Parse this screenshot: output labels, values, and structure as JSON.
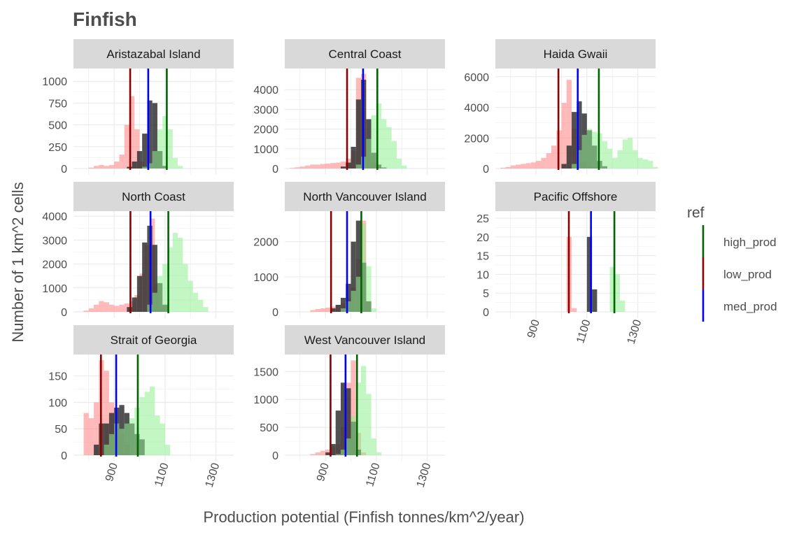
{
  "chart_data": {
    "type": "histogram",
    "title": "Finfish",
    "xlabel": "Production potential (Finfish tonnes/km^2/year)",
    "ylabel": "Number of 1 km^2 cells",
    "xlim": [
      740,
      1370
    ],
    "x_ticks": [
      "900",
      "1100",
      "1300"
    ],
    "x_tick_values": [
      900,
      1100,
      1300
    ],
    "bin_width": 20,
    "legend": {
      "title": "ref",
      "items": [
        {
          "label": "high_prod",
          "color": "#006400"
        },
        {
          "label": "low_prod",
          "color": "#8B0000"
        },
        {
          "label": "med_prod",
          "color": "#0000FF"
        }
      ]
    },
    "series_fill": {
      "low_prod": "#ff7f7f",
      "med_prod": "#333333",
      "high_prod": "#90ee90"
    },
    "facets": [
      {
        "name": "Aristazabal Island",
        "ylim": [
          0,
          1130
        ],
        "y_ticks": [
          0,
          250,
          500,
          750,
          1000
        ],
        "reference_lines": {
          "low_prod": 963,
          "med_prod": 1034,
          "high_prod": 1107
        },
        "bins": {
          "low_prod": {
            "start": 800,
            "values": [
              10,
              30,
              40,
              30,
              40,
              80,
              160,
              500,
              830,
              450,
              80,
              10
            ]
          },
          "med_prod": {
            "start": 950,
            "values": [
              20,
              80,
              200,
              400,
              780,
              750,
              200,
              30
            ]
          },
          "high_prod": {
            "start": 1010,
            "values": [
              20,
              60,
              200,
              450,
              600,
              450,
              120,
              30
            ]
          }
        }
      },
      {
        "name": "Central Coast",
        "ylim": [
          0,
          5000
        ],
        "y_ticks": [
          0,
          1000,
          2000,
          3000,
          4000
        ],
        "reference_lines": {
          "low_prod": 985,
          "med_prod": 1048,
          "high_prod": 1104
        },
        "bins": {
          "low_prod": {
            "start": 760,
            "values": [
              30,
              60,
              100,
              150,
              200,
              200,
              230,
              250,
              280,
              300,
              350,
              500,
              900,
              4600,
              4800,
              1500,
              300,
              60
            ]
          },
          "med_prod": {
            "start": 960,
            "values": [
              100,
              300,
              1100,
              3500,
              4500,
              2500,
              800,
              200,
              50
            ]
          },
          "high_prod": {
            "start": 1020,
            "values": [
              200,
              600,
              1500,
              2700,
              3300,
              2500,
              2100,
              1400,
              500,
              150
            ]
          }
        }
      },
      {
        "name": "Haida Gwaii",
        "ylim": [
          0,
          6450
        ],
        "y_ticks": [
          0,
          2000,
          4000,
          6000
        ],
        "reference_lines": {
          "low_prod": 988,
          "med_prod": 1064,
          "high_prod": 1147
        },
        "bins": {
          "low_prod": {
            "start": 760,
            "values": [
              50,
              100,
              200,
              250,
              300,
              350,
              400,
              500,
              700,
              1000,
              1500,
              2500,
              4300,
              5800,
              2600,
              1100,
              500,
              200,
              80
            ]
          },
          "med_prod": {
            "start": 1000,
            "values": [
              300,
              1500,
              3700,
              4400,
              3600,
              2500,
              1500,
              500,
              150
            ]
          },
          "high_prod": {
            "start": 1040,
            "values": [
              300,
              1200,
              2200,
              2600,
              2400,
              2300,
              1800,
              1300,
              700,
              1200,
              1900,
              2000,
              1200,
              700,
              600,
              500,
              100
            ]
          }
        }
      },
      {
        "name": "North Coast",
        "ylim": [
          0,
          4150
        ],
        "y_ticks": [
          0,
          1000,
          2000,
          3000,
          4000
        ],
        "reference_lines": {
          "low_prod": 964,
          "med_prod": 1043,
          "high_prod": 1113
        },
        "bins": {
          "low_prod": {
            "start": 780,
            "values": [
              50,
              150,
              300,
              450,
              400,
              300,
              250,
              300,
              350,
              450,
              700,
              1600,
              2800,
              3900,
              1200,
              200
            ]
          },
          "med_prod": {
            "start": 950,
            "values": [
              200,
              600,
              1500,
              2900,
              3600,
              2800,
              1200,
              300
            ]
          },
          "high_prod": {
            "start": 1030,
            "values": [
              300,
              800,
              1500,
              2000,
              2700,
              3300,
              3100,
              2000,
              1300,
              800,
              500,
              200
            ]
          }
        }
      },
      {
        "name": "North Vancouver Island",
        "ylim": [
          0,
          2830
        ],
        "y_ticks": [
          0,
          1000,
          2000
        ],
        "reference_lines": {
          "low_prod": 922,
          "med_prod": 985,
          "high_prod": 1041
        },
        "bins": {
          "low_prod": {
            "start": 840,
            "values": [
              50,
              80,
              100,
              120,
              150,
              200,
              250,
              400,
              700,
              1500,
              2600,
              300
            ]
          },
          "med_prod": {
            "start": 920,
            "values": [
              100,
              200,
              400,
              800,
              2000,
              2600,
              1400,
              300
            ]
          },
          "high_prod": {
            "start": 960,
            "values": [
              100,
              300,
              600,
              1000,
              2500,
              1300,
              100
            ]
          }
        }
      },
      {
        "name": "Pacific Offshore",
        "ylim": [
          0,
          26.5
        ],
        "y_ticks": [
          0,
          5,
          10,
          15,
          20,
          25
        ],
        "reference_lines": {
          "low_prod": 1029,
          "med_prod": 1116,
          "high_prod": 1208
        },
        "bins": {
          "low_prod": {
            "start": 1020,
            "values": [
              20,
              1
            ]
          },
          "med_prod": {
            "start": 1100,
            "values": [
              20,
              6
            ]
          },
          "high_prod": {
            "start": 1190,
            "values": [
              12,
              10,
              3
            ]
          }
        }
      },
      {
        "name": "Strait of Georgia",
        "ylim": [
          0,
          188
        ],
        "y_ticks": [
          0,
          50,
          100,
          150
        ],
        "reference_lines": {
          "low_prod": 848,
          "med_prod": 908,
          "high_prod": 993
        },
        "bins": {
          "low_prod": {
            "start": 780,
            "values": [
              80,
              70,
              100,
              180,
              160,
              100,
              60,
              40,
              20
            ]
          },
          "med_prod": {
            "start": 820,
            "values": [
              20,
              60,
              60,
              80,
              90,
              95,
              80,
              60,
              40,
              30
            ]
          },
          "high_prod": {
            "start": 860,
            "values": [
              20,
              40,
              60,
              50,
              60,
              70,
              90,
              110,
              120,
              130,
              75,
              60,
              20
            ]
          }
        }
      },
      {
        "name": "West Vancouver Island",
        "ylim": [
          0,
          1780
        ],
        "y_ticks": [
          0,
          500,
          1000,
          1500
        ],
        "reference_lines": {
          "low_prod": 920,
          "med_prod": 979,
          "high_prod": 1024
        },
        "bins": {
          "low_prod": {
            "start": 840,
            "values": [
              20,
              50,
              80,
              100,
              150,
              200,
              500,
              1300,
              1700,
              400,
              50
            ]
          },
          "med_prod": {
            "start": 900,
            "values": [
              50,
              200,
              800,
              1300,
              1200,
              600,
              100
            ]
          },
          "high_prod": {
            "start": 940,
            "values": [
              20,
              100,
              300,
              700,
              1300,
              1600,
              1100,
              300,
              50
            ]
          }
        }
      }
    ]
  }
}
